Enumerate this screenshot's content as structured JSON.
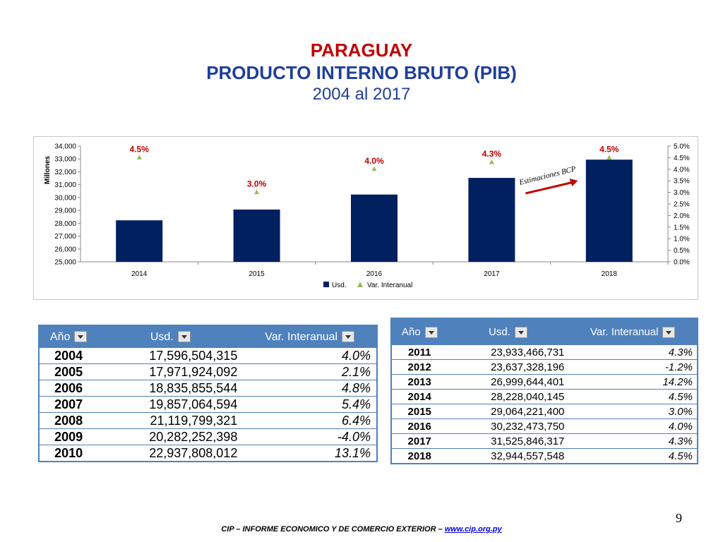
{
  "title": {
    "line1": "PARAGUAY",
    "line2": "PRODUCTO INTERNO BRUTO (PIB)",
    "line3": "2004 al 2017"
  },
  "colors": {
    "title_red": "#c00000",
    "title_blue": "#1f3f99",
    "bar": "#002060",
    "marker": "#9bbb59",
    "label_red": "#c00000",
    "header_blue": "#4f81bd"
  },
  "chart_data": {
    "type": "bar",
    "categories": [
      "2014",
      "2015",
      "2016",
      "2017",
      "2018"
    ],
    "series": [
      {
        "name": "Usd.",
        "type": "bar",
        "axis": "left",
        "values": [
          28228,
          29064,
          30232,
          31526,
          32945
        ]
      },
      {
        "name": "Var. Interanual",
        "type": "scatter",
        "axis": "right",
        "values": [
          4.5,
          3.0,
          4.0,
          4.3,
          4.5
        ],
        "labels": [
          "4.5%",
          "3.0%",
          "4.0%",
          "4.3%",
          "4.5%"
        ]
      }
    ],
    "ylabel": "Millones",
    "ylim": [
      25000,
      34000
    ],
    "yticks": [
      "25,000",
      "26,000",
      "27,000",
      "28,000",
      "29,000",
      "30,000",
      "31,000",
      "32,000",
      "33,000",
      "34,000"
    ],
    "y2lim": [
      0,
      5
    ],
    "y2ticks": [
      "0.0%",
      "0.5%",
      "1.0%",
      "1.5%",
      "2.0%",
      "2.5%",
      "3.0%",
      "3.5%",
      "4.0%",
      "4.5%",
      "5.0%"
    ],
    "annotation": "Estimaciones BCP",
    "legend": "bottom",
    "grid": false
  },
  "table_left": {
    "headers": [
      "Año",
      "Usd.",
      "Var. Interanual"
    ],
    "rows": [
      {
        "year": "2004",
        "usd": "17,596,504,315",
        "var": "4.0%"
      },
      {
        "year": "2005",
        "usd": "17,971,924,092",
        "var": "2.1%"
      },
      {
        "year": "2006",
        "usd": "18,835,855,544",
        "var": "4.8%"
      },
      {
        "year": "2007",
        "usd": "19,857,064,594",
        "var": "5.4%"
      },
      {
        "year": "2008",
        "usd": "21,119,799,321",
        "var": "6.4%"
      },
      {
        "year": "2009",
        "usd": "20,282,252,398",
        "var": "-4.0%"
      },
      {
        "year": "2010",
        "usd": "22,937,808,012",
        "var": "13.1%"
      }
    ]
  },
  "table_right": {
    "headers": [
      "Año",
      "Usd.",
      "Var. Interanual"
    ],
    "rows": [
      {
        "year": "2011",
        "usd": "23,933,466,731",
        "var": "4.3%"
      },
      {
        "year": "2012",
        "usd": "23,637,328,196",
        "var": "-1.2%"
      },
      {
        "year": "2013",
        "usd": "26,999,644,401",
        "var": "14.2%"
      },
      {
        "year": "2014",
        "usd": "28,228,040,145",
        "var": "4.5%"
      },
      {
        "year": "2015",
        "usd": "29,064,221,400",
        "var": "3.0%"
      },
      {
        "year": "2016",
        "usd": "30,232,473,750",
        "var": "4.0%"
      },
      {
        "year": "2017",
        "usd": "31,525,846,317",
        "var": "4.3%"
      },
      {
        "year": "2018",
        "usd": "32,944,557,548",
        "var": "4.5%"
      }
    ]
  },
  "page_number": "9",
  "footer": {
    "text": "CIP – INFORME ECONOMICO Y DE COMERCIO EXTERIOR – ",
    "link": "www.cip.org.py"
  }
}
